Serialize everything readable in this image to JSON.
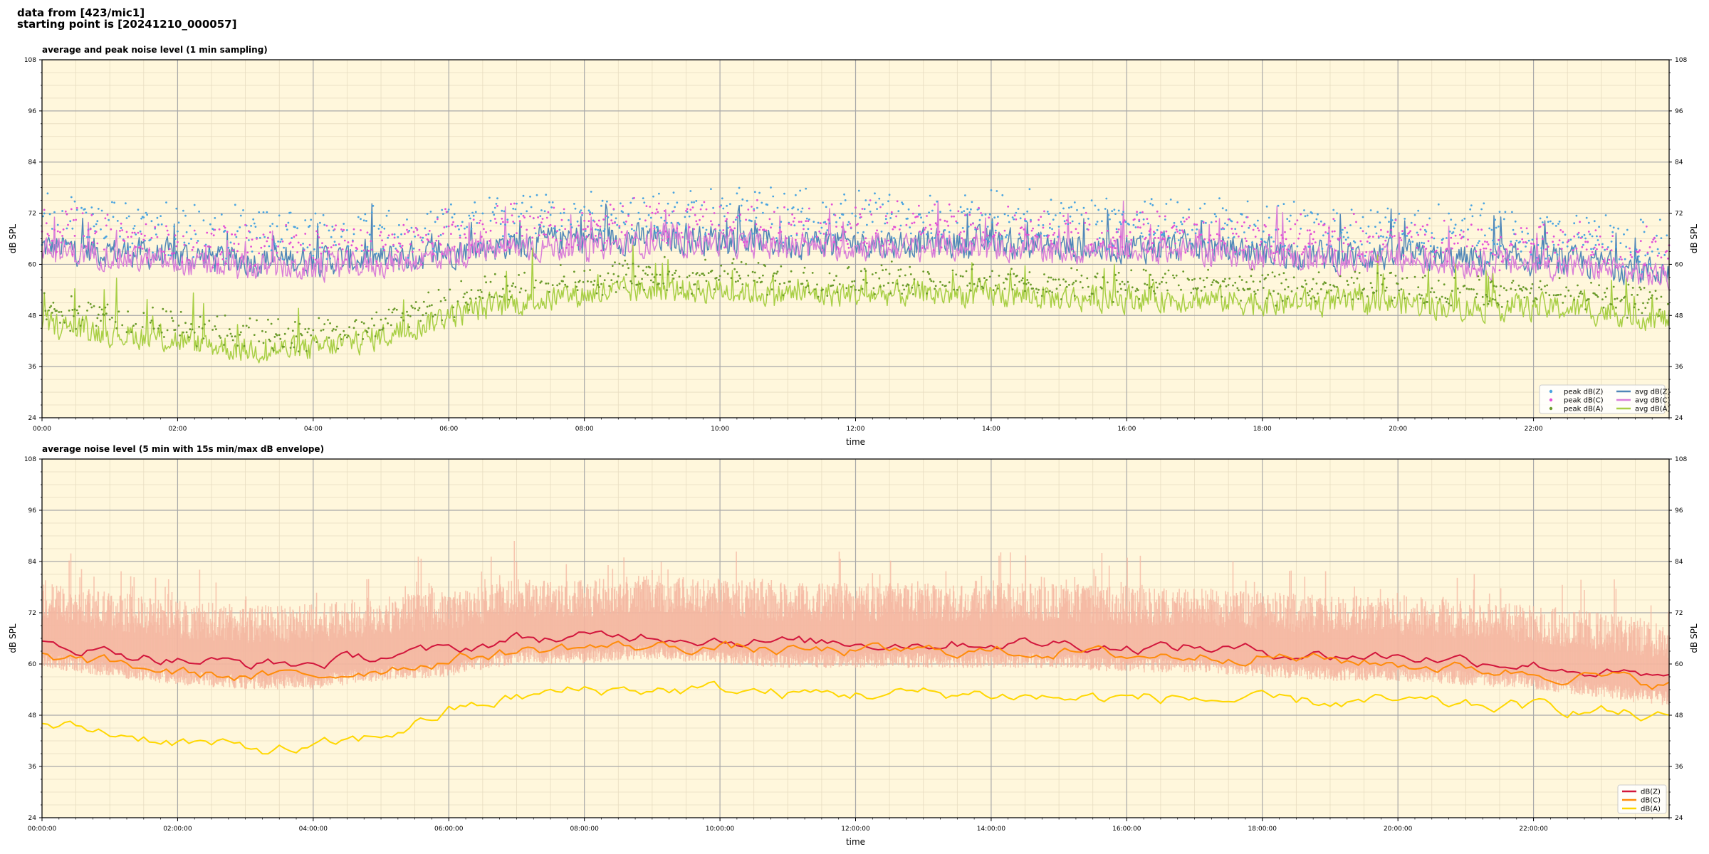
{
  "suptitle": {
    "line1": "data from [423/mic1]",
    "line2": "starting point is [20241210_000057]"
  },
  "colors": {
    "plot_bg": "#fff7dc",
    "grid_major": "#a9a9a9",
    "grid_minor": "#e7dcc0",
    "z_avg": "#4f86b8",
    "c_avg": "#d97fd8",
    "a_avg": "#a8cf45",
    "z_peak": "#4aa4e0",
    "c_peak": "#e34fd6",
    "a_peak": "#6a9a2a",
    "dbz": "#d2163c",
    "dbc": "#ff8c0a",
    "dba": "#ffd700",
    "envelope": "#f4b6a0"
  },
  "chart_data": [
    {
      "type": "line",
      "title": "average and peak noise level (1 min sampling)",
      "xlabel": "time",
      "ylabel": "dB SPL",
      "ylim": [
        24,
        108
      ],
      "xlim_hours": [
        0,
        24
      ],
      "yticks": [
        "24",
        "36",
        "48",
        "60",
        "72",
        "84",
        "96",
        "108"
      ],
      "xtick_labels": [
        "00:00",
        "02:00",
        "04:00",
        "06:00",
        "08:00",
        "10:00",
        "12:00",
        "14:00",
        "16:00",
        "18:00",
        "20:00",
        "22:00"
      ],
      "grid": true,
      "legend_position": "lower-right",
      "legend": [
        {
          "label": "peak dB(Z)",
          "kind": "marker",
          "color_key": "z_peak"
        },
        {
          "label": "peak dB(C)",
          "kind": "marker",
          "color_key": "c_peak"
        },
        {
          "label": "peak dB(A)",
          "kind": "marker",
          "color_key": "a_peak"
        },
        {
          "label": "avg dB(Z)",
          "kind": "line",
          "color_key": "z_avg"
        },
        {
          "label": "avg dB(C)",
          "kind": "line",
          "color_key": "c_avg"
        },
        {
          "label": "avg dB(A)",
          "kind": "line",
          "color_key": "a_avg"
        }
      ],
      "trend_hours": [
        0,
        1,
        2,
        3,
        4,
        5,
        6,
        7,
        8,
        9,
        10,
        11,
        12,
        13,
        14,
        15,
        16,
        17,
        18,
        19,
        20,
        21,
        22,
        23,
        24
      ],
      "series": [
        {
          "name": "avg dB(Z)",
          "color_key": "z_avg",
          "trend": [
            64,
            63,
            62,
            61,
            61,
            61,
            63,
            65,
            66,
            66,
            66,
            65,
            65,
            65,
            65,
            64,
            64,
            64,
            63,
            62,
            62,
            61,
            61,
            60,
            58
          ],
          "noise": 4.0
        },
        {
          "name": "avg dB(C)",
          "color_key": "c_avg",
          "trend": [
            63,
            62,
            60,
            59,
            59,
            60,
            62,
            64,
            64,
            65,
            65,
            64,
            64,
            64,
            64,
            63,
            63,
            63,
            62,
            61,
            61,
            60,
            60,
            59,
            57
          ],
          "noise": 3.5
        },
        {
          "name": "avg dB(A)",
          "color_key": "a_avg",
          "trend": [
            46,
            44,
            42,
            40,
            40,
            43,
            48,
            51,
            53,
            54,
            54,
            53,
            53,
            53,
            53,
            52,
            52,
            52,
            51,
            51,
            51,
            50,
            50,
            49,
            47
          ],
          "noise": 3.5
        },
        {
          "name": "peak dB(Z)",
          "color_key": "z_peak",
          "kind": "scatter",
          "offset": 9,
          "spread": 6
        },
        {
          "name": "peak dB(C)",
          "color_key": "c_peak",
          "kind": "scatter",
          "offset": 7,
          "spread": 6
        },
        {
          "name": "peak dB(A)",
          "color_key": "a_peak",
          "kind": "scatter",
          "offset": 5,
          "spread": 4
        }
      ]
    },
    {
      "type": "line",
      "title": "average noise level (5 min with 15s min/max dB envelope)",
      "xlabel": "time",
      "ylabel": "dB SPL",
      "ylim": [
        24,
        108
      ],
      "xlim_hours": [
        0,
        24
      ],
      "yticks": [
        "24",
        "36",
        "48",
        "60",
        "72",
        "84",
        "96",
        "108"
      ],
      "xtick_labels": [
        "00:00:00",
        "02:00:00",
        "04:00:00",
        "06:00:00",
        "08:00:00",
        "10:00:00",
        "12:00:00",
        "14:00:00",
        "16:00:00",
        "18:00:00",
        "20:00:00",
        "22:00:00"
      ],
      "grid": true,
      "legend_position": "lower-right",
      "legend": [
        {
          "label": "dB(Z)",
          "kind": "line",
          "color_key": "dbz"
        },
        {
          "label": "dB(C)",
          "kind": "line",
          "color_key": "dbc"
        },
        {
          "label": "dB(A)",
          "kind": "line",
          "color_key": "dba"
        }
      ],
      "trend_hours": [
        0,
        1,
        2,
        3,
        4,
        5,
        6,
        7,
        8,
        9,
        10,
        11,
        12,
        13,
        14,
        15,
        16,
        17,
        18,
        19,
        20,
        21,
        22,
        23,
        24
      ],
      "series": [
        {
          "name": "dB(Z)",
          "color_key": "dbz",
          "trend": [
            65,
            63,
            61,
            60,
            60,
            62,
            63,
            66,
            66,
            67,
            66,
            65,
            65,
            65,
            65,
            65,
            64,
            64,
            63,
            62,
            62,
            61,
            60,
            58,
            56
          ],
          "noise": 2.0
        },
        {
          "name": "dB(C)",
          "color_key": "dbc",
          "trend": [
            62,
            60,
            58,
            57,
            57,
            59,
            61,
            63,
            64,
            64,
            64,
            63,
            63,
            63,
            63,
            63,
            62,
            62,
            62,
            61,
            60,
            59,
            58,
            57,
            55
          ],
          "noise": 2.0
        },
        {
          "name": "dB(A)",
          "color_key": "dba",
          "trend": [
            46,
            44,
            42,
            40,
            40,
            43,
            49,
            52,
            54,
            54,
            54,
            53,
            53,
            53,
            53,
            52,
            52,
            52,
            51,
            51,
            51,
            50,
            50,
            49,
            47
          ],
          "noise": 2.2
        }
      ],
      "envelope": {
        "color_key": "envelope",
        "max_offset": 14,
        "min_offset": -6
      }
    }
  ]
}
